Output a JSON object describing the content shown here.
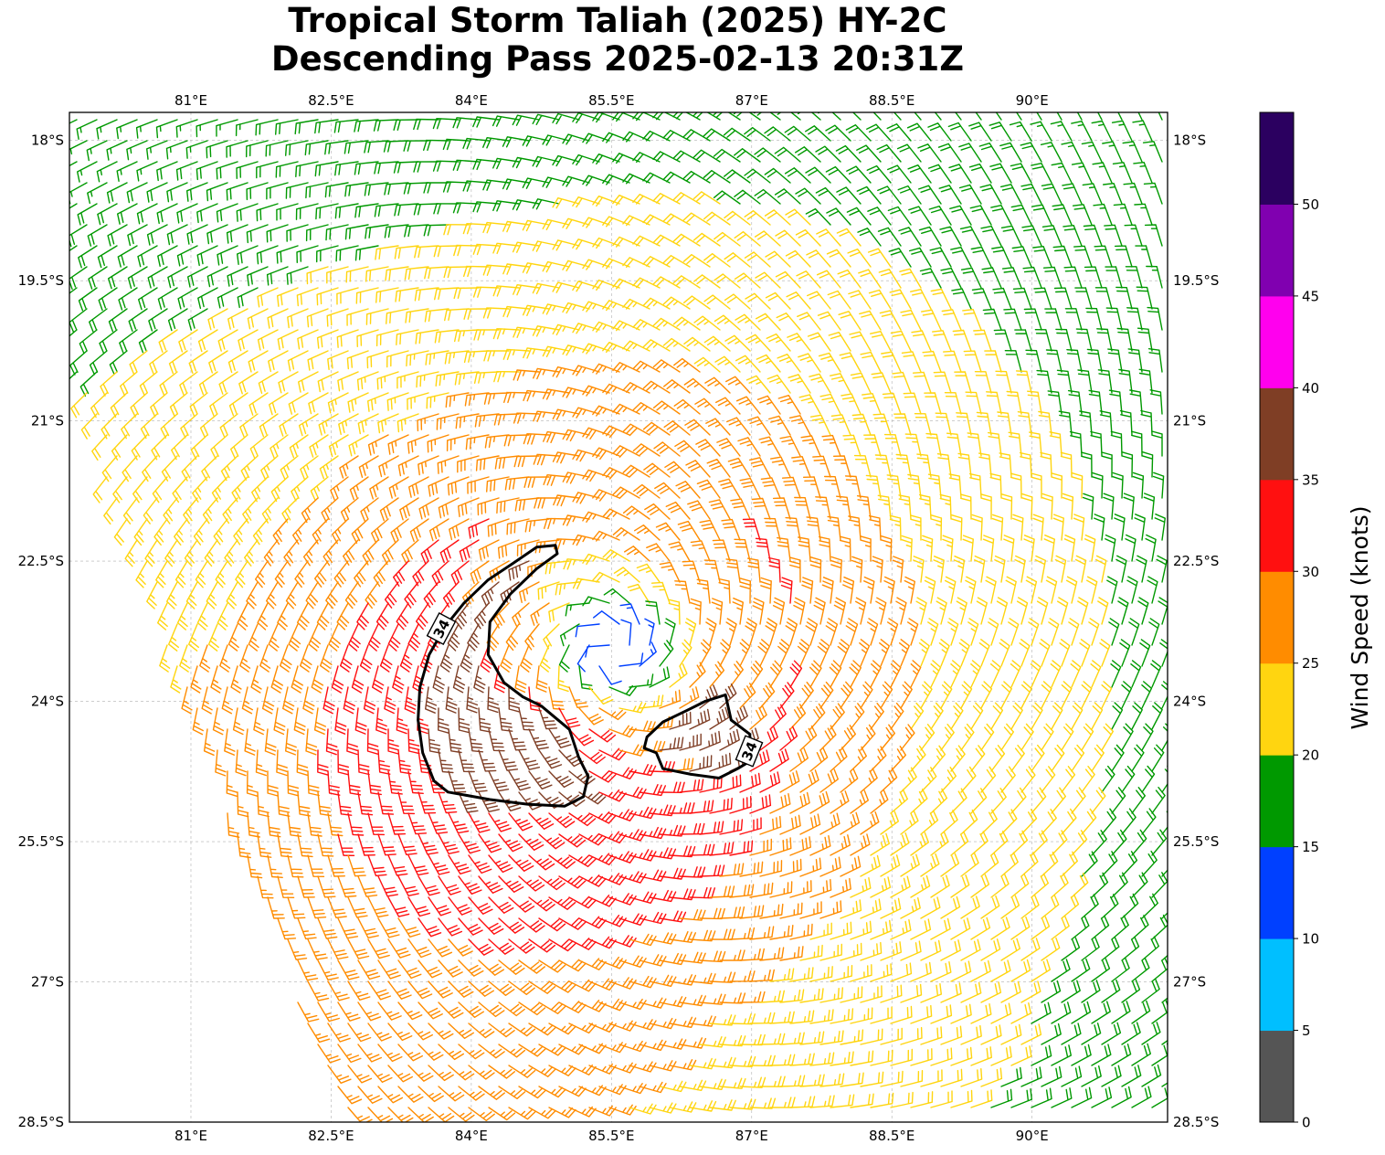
{
  "title": {
    "line1": "Tropical Storm Taliah (2025) HY-2C",
    "line2": "Descending Pass 2025-02-13 20:31Z"
  },
  "map": {
    "lon_range": [
      79.7,
      91.45
    ],
    "lat_range": [
      -28.5,
      -17.7
    ],
    "lon_ticks": [
      {
        "value": 81.0,
        "label": "81°E"
      },
      {
        "value": 82.5,
        "label": "82.5°E"
      },
      {
        "value": 84.0,
        "label": "84°E"
      },
      {
        "value": 85.5,
        "label": "85.5°E"
      },
      {
        "value": 87.0,
        "label": "87°E"
      },
      {
        "value": 88.5,
        "label": "88.5°E"
      },
      {
        "value": 90.0,
        "label": "90°E"
      }
    ],
    "lat_ticks": [
      {
        "value": -18.0,
        "label": "18°S"
      },
      {
        "value": -19.5,
        "label": "19.5°S"
      },
      {
        "value": -21.0,
        "label": "21°S"
      },
      {
        "value": -22.5,
        "label": "22.5°S"
      },
      {
        "value": -24.0,
        "label": "24°S"
      },
      {
        "value": -25.5,
        "label": "25.5°S"
      },
      {
        "value": -27.0,
        "label": "27°S"
      },
      {
        "value": -28.5,
        "label": "28.5°S"
      }
    ],
    "gridlines": true,
    "storm_center": {
      "lon": 85.5,
      "lat": -23.45
    },
    "contour_34kt": {
      "label": "34",
      "regions": [
        [
          [
            84.9,
            -22.33
          ],
          [
            84.7,
            -22.35
          ],
          [
            84.45,
            -22.52
          ],
          [
            84.18,
            -22.7
          ],
          [
            83.92,
            -22.95
          ],
          [
            83.72,
            -23.2
          ],
          [
            83.55,
            -23.5
          ],
          [
            83.45,
            -23.85
          ],
          [
            83.43,
            -24.2
          ],
          [
            83.48,
            -24.55
          ],
          [
            83.6,
            -24.85
          ],
          [
            83.75,
            -24.97
          ],
          [
            84.2,
            -25.05
          ],
          [
            84.6,
            -25.1
          ],
          [
            85.0,
            -25.12
          ],
          [
            85.2,
            -25.02
          ],
          [
            85.25,
            -24.8
          ],
          [
            85.15,
            -24.6
          ],
          [
            85.05,
            -24.3
          ],
          [
            84.75,
            -24.05
          ],
          [
            84.55,
            -23.95
          ],
          [
            84.35,
            -23.8
          ],
          [
            84.18,
            -23.5
          ],
          [
            84.2,
            -23.15
          ],
          [
            84.42,
            -22.85
          ],
          [
            84.7,
            -22.58
          ],
          [
            84.92,
            -22.42
          ]
        ],
        [
          [
            86.72,
            -23.93
          ],
          [
            86.5,
            -24.0
          ],
          [
            86.3,
            -24.1
          ],
          [
            86.05,
            -24.22
          ],
          [
            85.88,
            -24.38
          ],
          [
            85.85,
            -24.5
          ],
          [
            85.98,
            -24.55
          ],
          [
            86.05,
            -24.72
          ],
          [
            86.35,
            -24.78
          ],
          [
            86.65,
            -24.82
          ],
          [
            86.85,
            -24.72
          ],
          [
            87.0,
            -24.63
          ],
          [
            86.98,
            -24.35
          ],
          [
            86.78,
            -24.2
          ],
          [
            86.72,
            -23.93
          ]
        ]
      ]
    },
    "barb_colors": [
      "#555555",
      "#00bfff",
      "#0040ff",
      "#009900",
      "#ffd510",
      "#ff8c00",
      "#ff1010",
      "#7f3e25",
      "#ff00ee",
      "#8000b0",
      "#2b0060"
    ]
  },
  "colorbar": {
    "label": "Wind Speed (knots)",
    "min": 0,
    "max": 55,
    "bounds": [
      0,
      5,
      10,
      15,
      20,
      25,
      30,
      35,
      40,
      45,
      50,
      55
    ],
    "colors": [
      "#555555",
      "#00bfff",
      "#0040ff",
      "#009900",
      "#ffd510",
      "#ff8c00",
      "#ff1010",
      "#7f3e25",
      "#ff00ee",
      "#8000b0",
      "#2b0060"
    ],
    "tick_values": [
      0,
      5,
      10,
      15,
      20,
      25,
      30,
      35,
      40,
      45,
      50
    ],
    "tick_labels": [
      "0",
      "5",
      "10",
      "15",
      "20",
      "25",
      "30",
      "35",
      "40",
      "45",
      "50"
    ]
  }
}
